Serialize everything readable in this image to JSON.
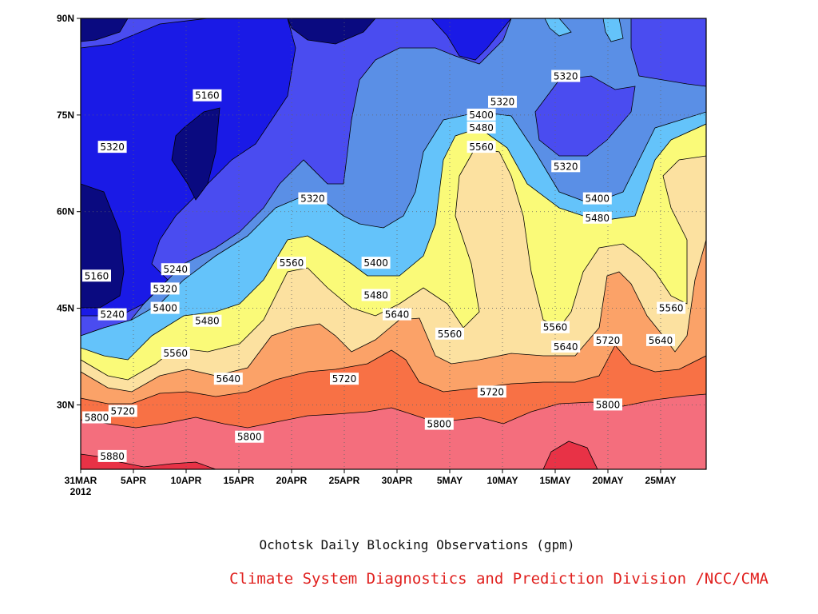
{
  "chart_data": {
    "type": "heatmap",
    "subtype": "filled-contour",
    "title": "Ochotsk Daily Blocking Observations (gpm)",
    "credit": "Climate System Diagnostics and Prediction Division /NCC/CMA",
    "x_axis": {
      "kind": "date",
      "start": "2012-03-31",
      "end": "2012-05-30",
      "tick_labels": [
        "31MAR",
        "5APR",
        "10APR",
        "15APR",
        "20APR",
        "25APR",
        "30APR",
        "5MAY",
        "10MAY",
        "15MAY",
        "20MAY",
        "25MAY"
      ],
      "year_label": "2012"
    },
    "y_axis": {
      "kind": "latitude",
      "range": [
        20,
        90
      ],
      "tick_labels": [
        "30N",
        "45N",
        "60N",
        "75N",
        "90N"
      ]
    },
    "grid": "dotted",
    "levels": [
      5160,
      5240,
      5320,
      5400,
      5480,
      5560,
      5640,
      5720,
      5800,
      5880
    ],
    "bands": [
      {
        "range": "< 5160",
        "color": "#0a0a80"
      },
      {
        "range": "5160-5240",
        "color": "#1a1ae6"
      },
      {
        "range": "5240-5320",
        "color": "#4a4cf0"
      },
      {
        "range": "5320-5400",
        "color": "#5a8fe6"
      },
      {
        "range": "5400-5480",
        "color": "#64c3fa"
      },
      {
        "range": "5480-5560",
        "color": "#fafa78"
      },
      {
        "range": "5560-5640",
        "color": "#fce1a0"
      },
      {
        "range": "5640-5720",
        "color": "#fba268"
      },
      {
        "range": "5720-5800",
        "color": "#f87145"
      },
      {
        "range": "5800-5880",
        "color": "#f46e7d"
      },
      {
        "range": "> 5880",
        "color": "#e83246"
      }
    ],
    "contour_labels": [
      {
        "text": "5160",
        "date": "2012-04-12",
        "lat": 78
      },
      {
        "text": "5320",
        "date": "2012-04-03",
        "lat": 70
      },
      {
        "text": "5320",
        "date": "2012-04-22",
        "lat": 62
      },
      {
        "text": "5160",
        "date": "2012-03-31",
        "lat": 50
      },
      {
        "text": "5240",
        "date": "2012-04-09",
        "lat": 51
      },
      {
        "text": "5320",
        "date": "2012-04-08",
        "lat": 48
      },
      {
        "text": "5240",
        "date": "2012-04-03",
        "lat": 44
      },
      {
        "text": "5400",
        "date": "2012-04-08",
        "lat": 45
      },
      {
        "text": "5480",
        "date": "2012-04-12",
        "lat": 43
      },
      {
        "text": "5560",
        "date": "2012-04-09",
        "lat": 38
      },
      {
        "text": "5560",
        "date": "2012-04-20",
        "lat": 52
      },
      {
        "text": "5400",
        "date": "2012-04-28",
        "lat": 52
      },
      {
        "text": "5480",
        "date": "2012-04-28",
        "lat": 47
      },
      {
        "text": "5640",
        "date": "2012-04-30",
        "lat": 44
      },
      {
        "text": "5640",
        "date": "2012-04-14",
        "lat": 34
      },
      {
        "text": "5720",
        "date": "2012-04-25",
        "lat": 34
      },
      {
        "text": "5720",
        "date": "2012-04-04",
        "lat": 29
      },
      {
        "text": "5800",
        "date": "2012-03-31",
        "lat": 28
      },
      {
        "text": "5800",
        "date": "2012-04-16",
        "lat": 25
      },
      {
        "text": "5880",
        "date": "2012-04-03",
        "lat": 22
      },
      {
        "text": "5320",
        "date": "2012-05-10",
        "lat": 77
      },
      {
        "text": "5400",
        "date": "2012-05-08",
        "lat": 75
      },
      {
        "text": "5480",
        "date": "2012-05-08",
        "lat": 73
      },
      {
        "text": "5560",
        "date": "2012-05-08",
        "lat": 70
      },
      {
        "text": "5560",
        "date": "2012-05-05",
        "lat": 41
      },
      {
        "text": "5720",
        "date": "2012-05-09",
        "lat": 32
      },
      {
        "text": "5800",
        "date": "2012-05-04",
        "lat": 27
      },
      {
        "text": "5320",
        "date": "2012-05-16",
        "lat": 81
      },
      {
        "text": "5320",
        "date": "2012-05-16",
        "lat": 67
      },
      {
        "text": "5400",
        "date": "2012-05-19",
        "lat": 62
      },
      {
        "text": "5480",
        "date": "2012-05-19",
        "lat": 59
      },
      {
        "text": "5560",
        "date": "2012-05-15",
        "lat": 42
      },
      {
        "text": "5640",
        "date": "2012-05-16",
        "lat": 39
      },
      {
        "text": "5720",
        "date": "2012-05-20",
        "lat": 40
      },
      {
        "text": "5800",
        "date": "2012-05-20",
        "lat": 30
      },
      {
        "text": "5560",
        "date": "2012-05-26",
        "lat": 45
      },
      {
        "text": "5640",
        "date": "2012-05-25",
        "lat": 40
      }
    ]
  }
}
